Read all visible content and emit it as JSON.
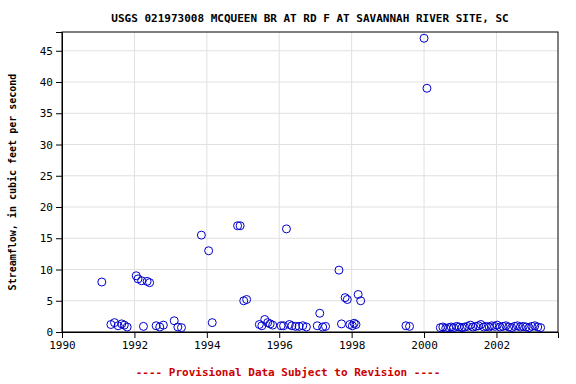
{
  "chart_data": {
    "type": "scatter",
    "title": "USGS 021973008 MCQUEEN BR AT RD F AT SAVANNAH RIVER SITE, SC",
    "ylabel": "Streamflow, in cubic feet per second",
    "annotations": [
      {
        "text": "---- Provisional Data Subject to Revision ----",
        "color": "#cc0000"
      }
    ],
    "xlim": [
      1990,
      2003.7
    ],
    "ylim": [
      0,
      48
    ],
    "xticks": [
      1990,
      1992,
      1994,
      1996,
      1998,
      2000,
      2002
    ],
    "yticks": [
      0,
      5,
      10,
      15,
      20,
      25,
      30,
      35,
      40,
      45
    ],
    "grid": true,
    "color": "#0000CC",
    "marker": "open-circle",
    "x": [
      1991.1,
      1991.35,
      1991.45,
      1991.55,
      1991.65,
      1991.72,
      1991.8,
      1992.05,
      1992.1,
      1992.2,
      1992.25,
      1992.35,
      1992.42,
      1992.6,
      1992.7,
      1992.8,
      1993.1,
      1993.2,
      1993.3,
      1993.85,
      1994.05,
      1994.15,
      1994.85,
      1994.92,
      1995.02,
      1995.1,
      1995.45,
      1995.52,
      1995.6,
      1995.68,
      1995.75,
      1995.82,
      1996.05,
      1996.12,
      1996.2,
      1996.28,
      1996.35,
      1996.45,
      1996.55,
      1996.65,
      1996.75,
      1997.05,
      1997.12,
      1997.2,
      1997.28,
      1997.65,
      1997.72,
      1997.82,
      1997.88,
      1997.95,
      1998.02,
      1998.07,
      1998.12,
      1998.18,
      1998.25,
      1999.5,
      1999.6,
      2000.0,
      2000.08,
      2000.45,
      2000.52,
      2000.6,
      2000.68,
      2000.75,
      2000.82,
      2000.9,
      2000.97,
      2001.05,
      2001.12,
      2001.2,
      2001.28,
      2001.35,
      2001.43,
      2001.5,
      2001.57,
      2001.65,
      2001.72,
      2001.8,
      2001.87,
      2001.95,
      2002.02,
      2002.1,
      2002.18,
      2002.26,
      2002.34,
      2002.42,
      2002.5,
      2002.58,
      2002.66,
      2002.74,
      2002.82,
      2002.9,
      2002.98,
      2003.06,
      2003.14,
      2003.22
    ],
    "values": [
      8.0,
      1.2,
      1.5,
      1.0,
      1.3,
      1.1,
      0.8,
      9.0,
      8.5,
      8.2,
      0.9,
      8.1,
      7.9,
      1.0,
      0.8,
      1.1,
      1.8,
      0.8,
      0.7,
      15.5,
      13.0,
      1.5,
      17.0,
      17.0,
      5.0,
      5.2,
      1.2,
      1.0,
      2.0,
      1.5,
      1.3,
      1.1,
      1.0,
      1.0,
      16.5,
      1.2,
      1.0,
      0.9,
      0.9,
      1.0,
      0.8,
      1.0,
      3.0,
      0.8,
      0.9,
      9.9,
      1.3,
      5.5,
      5.2,
      1.2,
      1.0,
      1.4,
      1.2,
      6.0,
      5.0,
      1.0,
      0.9,
      47.0,
      39.0,
      0.7,
      0.8,
      0.6,
      0.7,
      0.8,
      0.7,
      0.9,
      0.8,
      0.7,
      0.8,
      0.9,
      1.1,
      0.8,
      0.9,
      1.0,
      1.2,
      0.8,
      0.9,
      0.8,
      1.0,
      0.9,
      1.1,
      0.8,
      0.9,
      1.0,
      0.8,
      0.7,
      0.9,
      1.0,
      0.8,
      0.9,
      0.8,
      0.7,
      0.9,
      1.0,
      0.8,
      0.7
    ]
  }
}
